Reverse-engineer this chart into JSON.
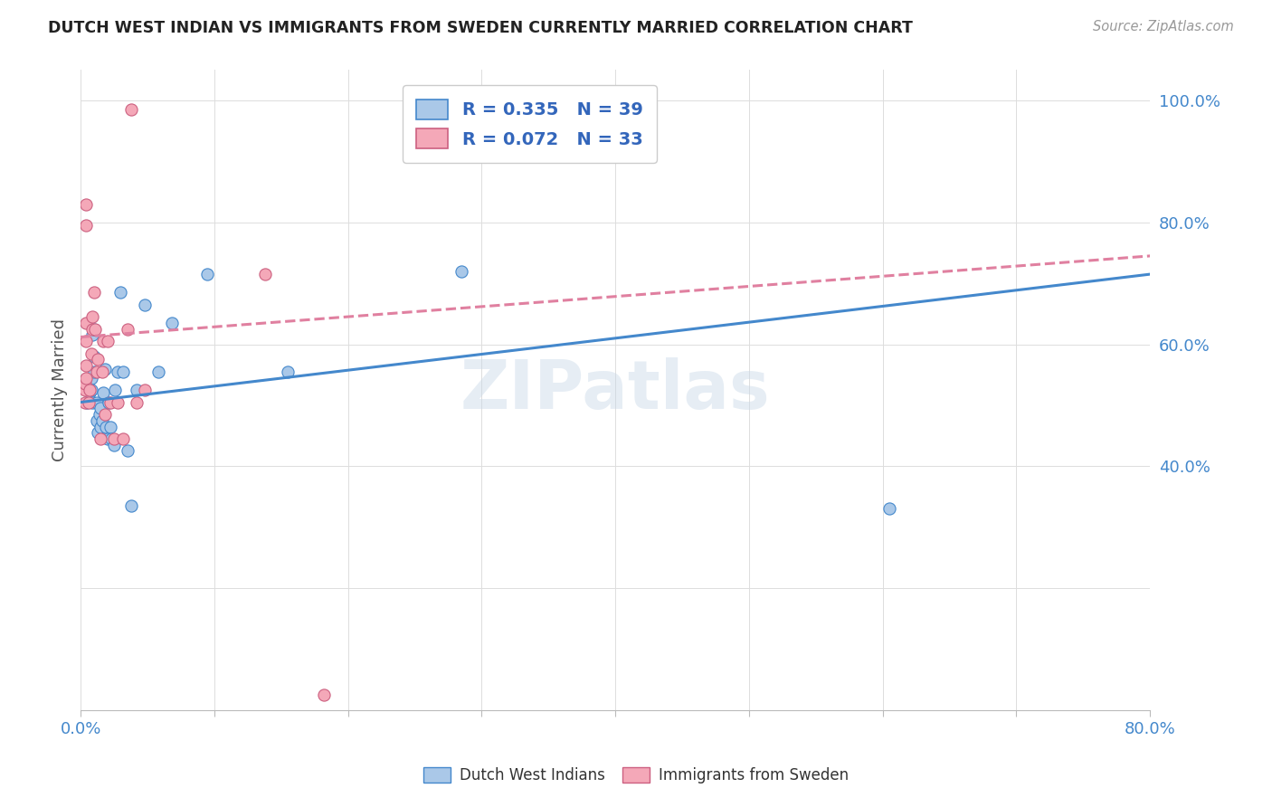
{
  "title": "DUTCH WEST INDIAN VS IMMIGRANTS FROM SWEDEN CURRENTLY MARRIED CORRELATION CHART",
  "source": "Source: ZipAtlas.com",
  "ylabel": "Currently Married",
  "xlim": [
    0.0,
    0.8
  ],
  "ylim": [
    0.0,
    1.05
  ],
  "xticks": [
    0.0,
    0.1,
    0.2,
    0.3,
    0.4,
    0.5,
    0.6,
    0.7,
    0.8
  ],
  "xticklabels": [
    "0.0%",
    "",
    "",
    "",
    "",
    "",
    "",
    "",
    "80.0%"
  ],
  "yticks": [
    0.0,
    0.2,
    0.4,
    0.6,
    0.8,
    1.0
  ],
  "yticklabels": [
    "",
    "",
    "40.0%",
    "60.0%",
    "80.0%",
    "100.0%"
  ],
  "blue_color": "#aac8e8",
  "pink_color": "#f4a8b8",
  "blue_line_color": "#4488cc",
  "pink_line_color": "#e080a0",
  "watermark": "ZIPatlas",
  "blue_trend_x0": 0.0,
  "blue_trend_y0": 0.505,
  "blue_trend_x1": 0.8,
  "blue_trend_y1": 0.715,
  "pink_trend_x0": 0.0,
  "pink_trend_y0": 0.612,
  "pink_trend_x1": 0.8,
  "pink_trend_y1": 0.745,
  "blue_scatter_x": [
    0.004,
    0.005,
    0.007,
    0.008,
    0.008,
    0.009,
    0.009,
    0.01,
    0.01,
    0.01,
    0.012,
    0.012,
    0.013,
    0.014,
    0.015,
    0.015,
    0.016,
    0.017,
    0.018,
    0.019,
    0.02,
    0.021,
    0.022,
    0.023,
    0.025,
    0.026,
    0.028,
    0.03,
    0.032,
    0.035,
    0.038,
    0.042,
    0.048,
    0.058,
    0.068,
    0.095,
    0.155,
    0.285,
    0.605
  ],
  "blue_scatter_y": [
    0.53,
    0.505,
    0.52,
    0.545,
    0.525,
    0.505,
    0.615,
    0.555,
    0.625,
    0.58,
    0.505,
    0.475,
    0.455,
    0.485,
    0.465,
    0.495,
    0.475,
    0.52,
    0.56,
    0.465,
    0.445,
    0.505,
    0.465,
    0.445,
    0.435,
    0.525,
    0.555,
    0.685,
    0.555,
    0.425,
    0.335,
    0.525,
    0.665,
    0.555,
    0.635,
    0.715,
    0.555,
    0.72,
    0.33
  ],
  "pink_scatter_x": [
    0.003,
    0.003,
    0.003,
    0.004,
    0.004,
    0.004,
    0.004,
    0.004,
    0.004,
    0.006,
    0.007,
    0.008,
    0.009,
    0.009,
    0.01,
    0.011,
    0.012,
    0.013,
    0.015,
    0.016,
    0.017,
    0.018,
    0.02,
    0.022,
    0.025,
    0.028,
    0.032,
    0.035,
    0.038,
    0.042,
    0.048,
    0.138,
    0.182
  ],
  "pink_scatter_y": [
    0.505,
    0.525,
    0.535,
    0.545,
    0.565,
    0.605,
    0.635,
    0.795,
    0.83,
    0.505,
    0.525,
    0.585,
    0.625,
    0.645,
    0.685,
    0.625,
    0.555,
    0.575,
    0.445,
    0.555,
    0.605,
    0.485,
    0.605,
    0.505,
    0.445,
    0.505,
    0.445,
    0.625,
    0.985,
    0.505,
    0.525,
    0.715,
    0.025
  ]
}
